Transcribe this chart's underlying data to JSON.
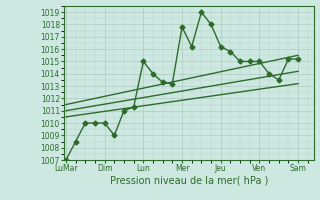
{
  "xlabel": "Pression niveau de la mer( hPa )",
  "background_color": "#cce8e0",
  "grid_color": "#b0c8c0",
  "line_color": "#2d6b2d",
  "ylim": [
    1007,
    1019.5
  ],
  "yticks": [
    1007,
    1008,
    1009,
    1010,
    1011,
    1012,
    1013,
    1014,
    1015,
    1016,
    1017,
    1018,
    1019
  ],
  "xtick_labels": [
    "LuMar",
    "Dim",
    "Lun",
    "Mer",
    "Jeu",
    "Ven",
    "Sam"
  ],
  "xtick_positions": [
    0,
    2,
    4,
    6,
    8,
    10,
    12
  ],
  "xlim": [
    -0.1,
    12.8
  ],
  "series1_x": [
    0,
    0.5,
    1,
    1.5,
    2,
    2.5,
    3,
    3.5,
    4,
    4.5,
    5,
    5.5,
    6,
    6.5,
    7,
    7.5,
    8,
    8.5,
    9,
    9.5,
    10,
    10.5,
    11,
    11.5,
    12
  ],
  "series1_y": [
    1007.0,
    1008.5,
    1010.0,
    1010.0,
    1010.0,
    1009.0,
    1011.0,
    1011.3,
    1015.0,
    1014.0,
    1013.3,
    1013.2,
    1017.8,
    1016.2,
    1019.0,
    1018.0,
    1016.2,
    1015.8,
    1015.0,
    1015.0,
    1015.0,
    1014.0,
    1013.5,
    1015.2,
    1015.2
  ],
  "trend1_x": [
    0,
    12
  ],
  "trend1_y": [
    1010.5,
    1013.2
  ],
  "trend2_x": [
    0,
    12
  ],
  "trend2_y": [
    1011.0,
    1014.2
  ],
  "trend3_x": [
    0,
    12
  ],
  "trend3_y": [
    1011.5,
    1015.5
  ],
  "marker_size": 2.5,
  "line_width": 1.0,
  "font_size_ticks": 5.5,
  "font_size_xlabel": 7
}
